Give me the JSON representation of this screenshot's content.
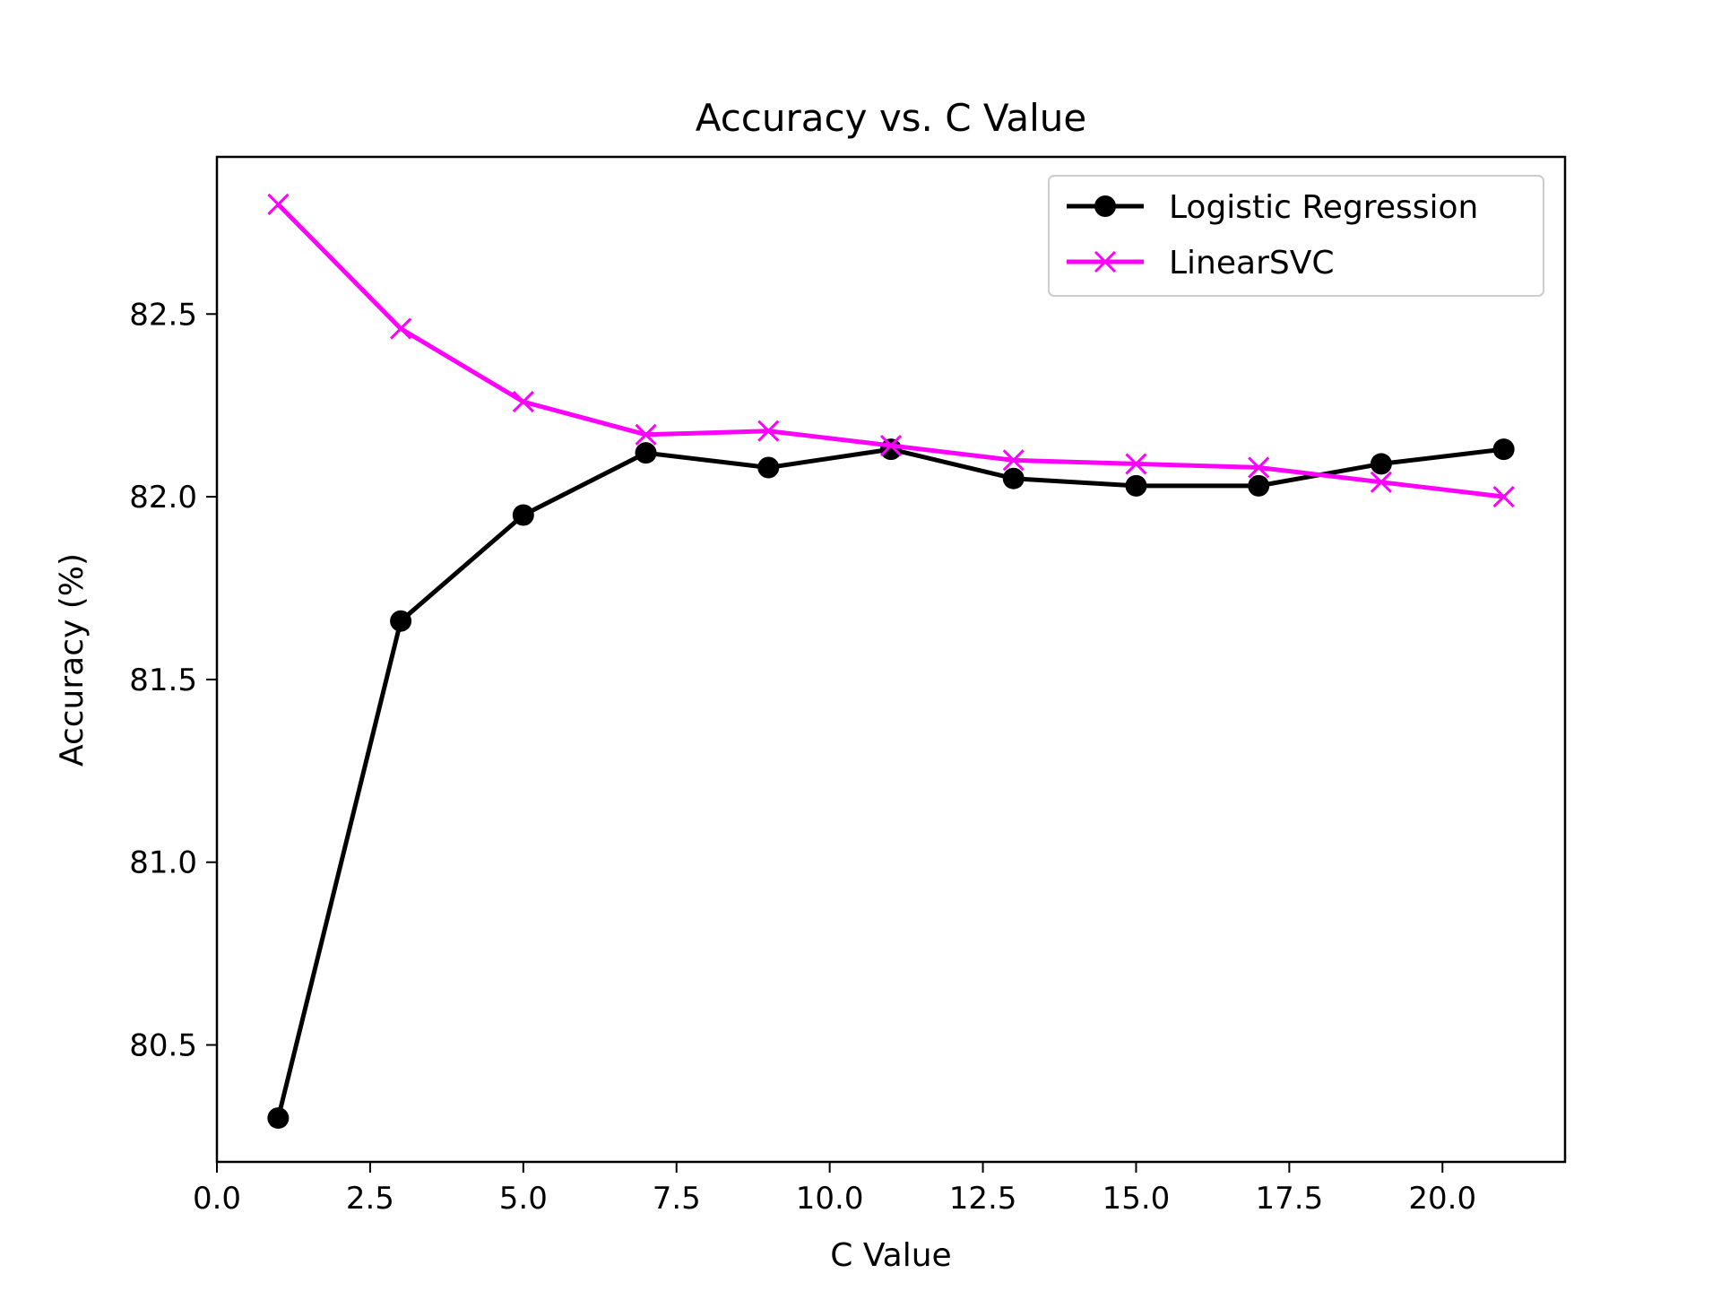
{
  "chart_data": {
    "type": "line",
    "title": "Accuracy vs. C Value",
    "xlabel": "C Value",
    "ylabel": "Accuracy (%)",
    "xlim": [
      0,
      22
    ],
    "ylim": [
      80.18,
      82.93
    ],
    "xticks": [
      "0.0",
      "2.5",
      "5.0",
      "7.5",
      "10.0",
      "12.5",
      "15.0",
      "17.5",
      "20.0"
    ],
    "yticks": [
      "80.5",
      "81.0",
      "81.5",
      "82.0",
      "82.5"
    ],
    "grid": false,
    "legend_position": "top-right",
    "x": [
      1,
      3,
      5,
      7,
      9,
      11,
      13,
      15,
      17,
      19,
      21
    ],
    "series": [
      {
        "name": "Logistic Regression",
        "color": "#000000",
        "marker": "circle",
        "values": [
          80.3,
          81.66,
          81.95,
          82.12,
          82.08,
          82.13,
          82.05,
          82.03,
          82.03,
          82.09,
          82.13
        ]
      },
      {
        "name": "LinearSVC",
        "color": "#ff00ff",
        "marker": "x",
        "values": [
          82.8,
          82.46,
          82.26,
          82.17,
          82.18,
          82.14,
          82.1,
          82.09,
          82.08,
          82.04,
          82.0
        ]
      }
    ]
  }
}
